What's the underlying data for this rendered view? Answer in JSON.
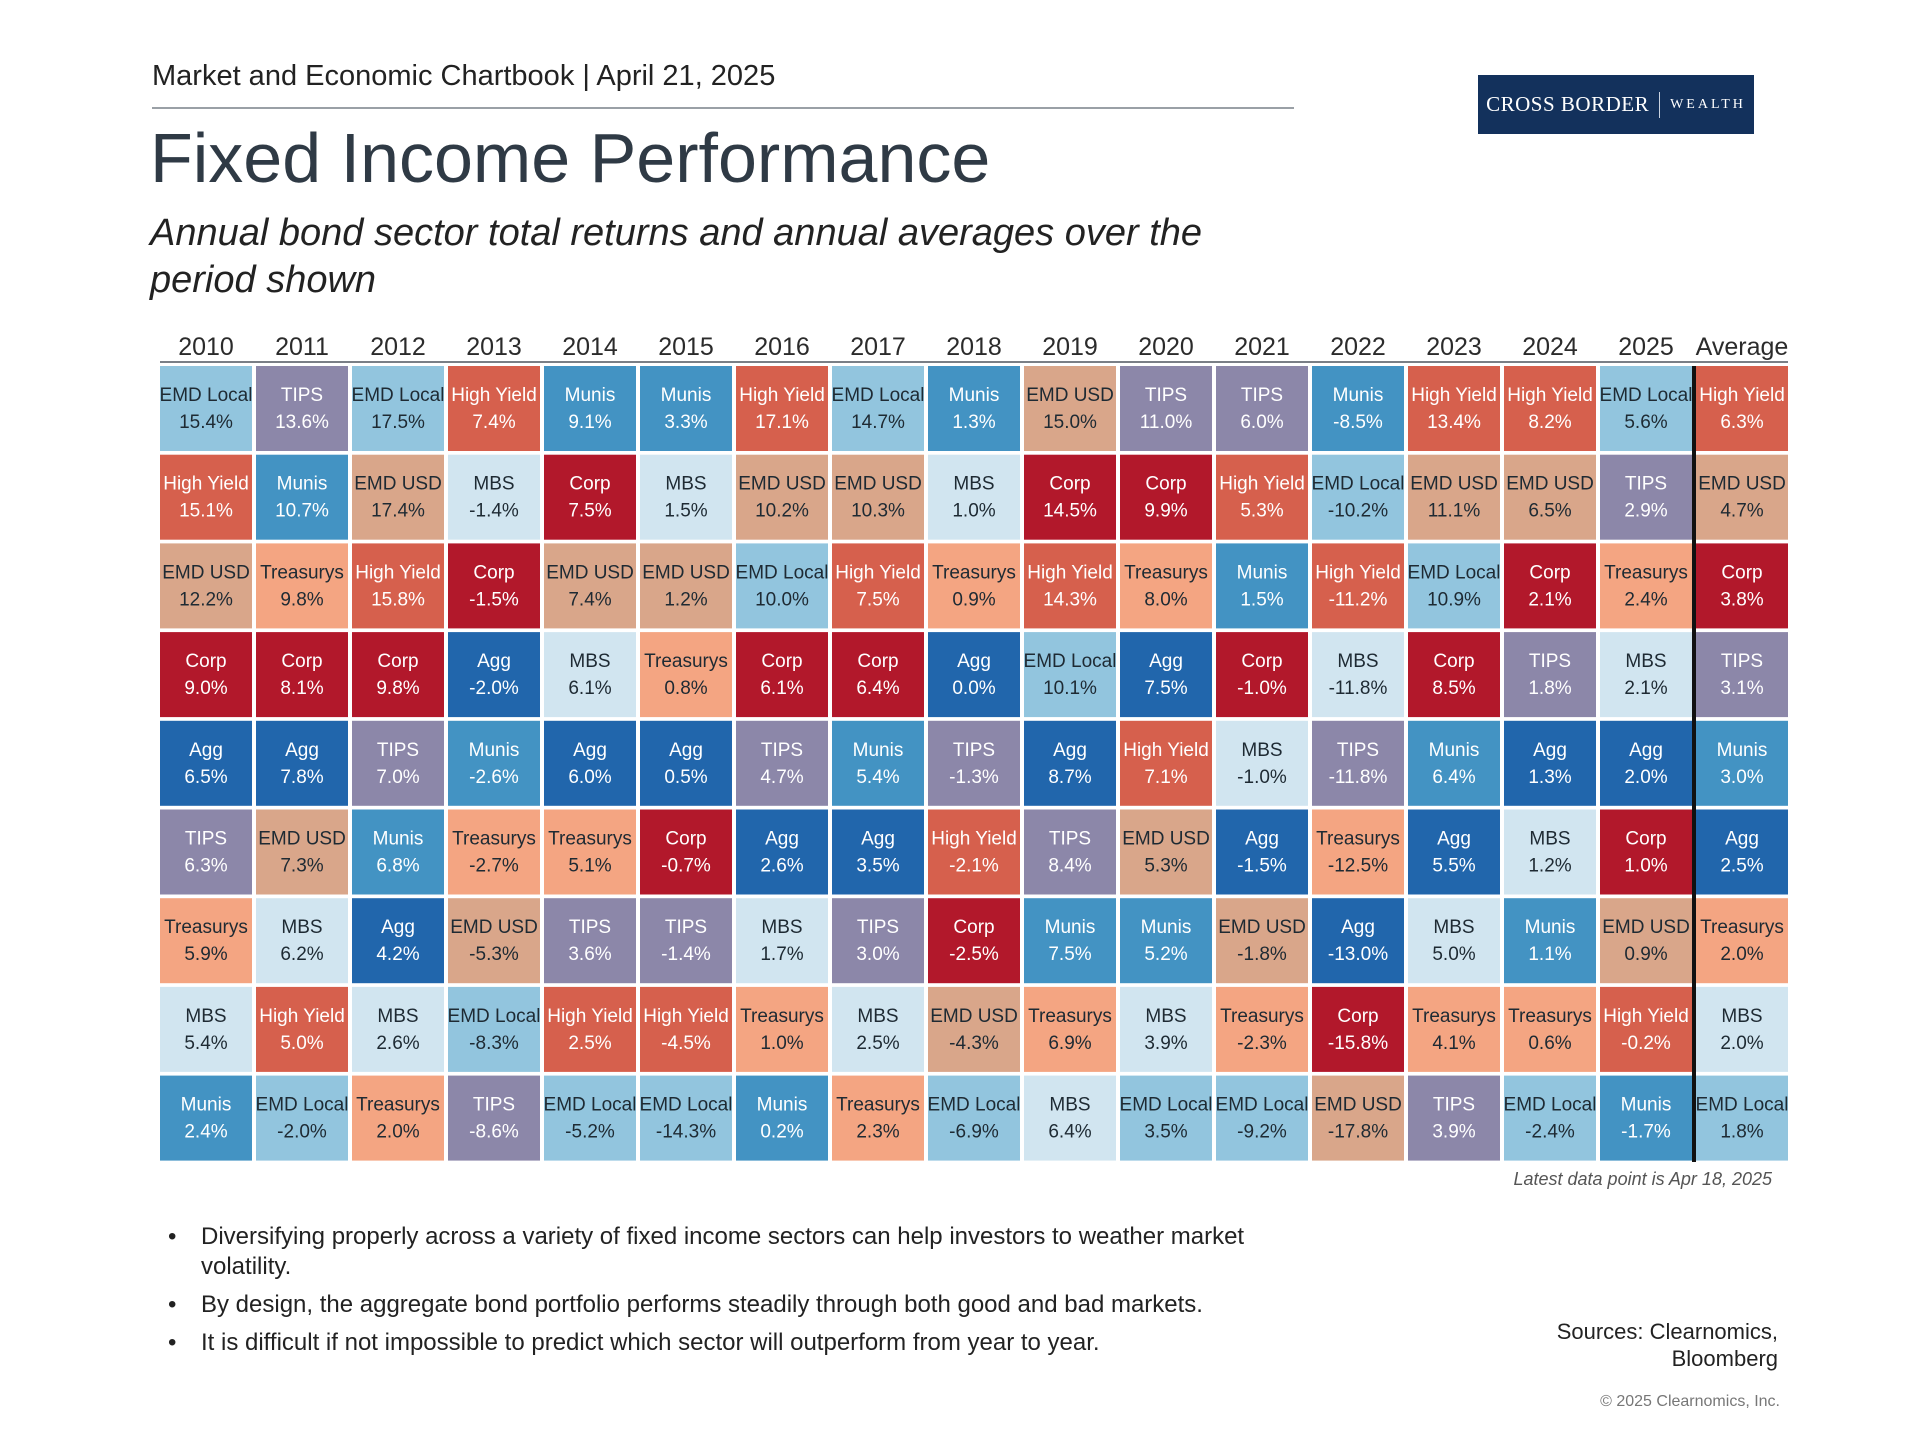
{
  "header": {
    "chartbook": "Market and Economic Chartbook | April 21, 2025",
    "logo_left": "CROSS BORDER",
    "logo_right": "WEALTH"
  },
  "title": "Fixed Income Performance",
  "subtitle": "Annual bond sector total returns and annual averages over the period shown",
  "note": "Latest data point is Apr 18, 2025",
  "bullets": [
    "Diversifying properly across a variety of fixed income sectors can help investors to weather market volatility.",
    "By design, the aggregate bond portfolio performs steadily through both good and bad markets.",
    "It is difficult if not impossible to predict which sector will outperform from year to year."
  ],
  "sources": "Sources: Clearnomics, Bloomberg",
  "copyright": "© 2025 Clearnomics, Inc.",
  "colors": {
    "EMD Local": "#92c5de",
    "TIPS": "#8c87a9",
    "High Yield": "#d6604d",
    "Munis": "#4393c3",
    "EMD USD": "#d9a68a",
    "MBS": "#d1e5f0",
    "Corp": "#b2182b",
    "Treasurys": "#f4a582",
    "Agg": "#2166ac"
  },
  "text_colors": {
    "EMD Local": "#1e2a33",
    "TIPS": "#ffffff",
    "High Yield": "#ffffff",
    "Munis": "#ffffff",
    "EMD USD": "#1e2a33",
    "MBS": "#1e2a33",
    "Corp": "#ffffff",
    "Treasurys": "#1e2a33",
    "Agg": "#ffffff"
  },
  "chart_data": {
    "type": "table",
    "title": "Fixed Income Performance",
    "columns": [
      "2010",
      "2011",
      "2012",
      "2013",
      "2014",
      "2015",
      "2016",
      "2017",
      "2018",
      "2019",
      "2020",
      "2021",
      "2022",
      "2023",
      "2024",
      "2025",
      "Average"
    ],
    "cells": [
      [
        [
          "EMD Local",
          "15.4%"
        ],
        [
          "High Yield",
          "15.1%"
        ],
        [
          "EMD USD",
          "12.2%"
        ],
        [
          "Corp",
          "9.0%"
        ],
        [
          "Agg",
          "6.5%"
        ],
        [
          "TIPS",
          "6.3%"
        ],
        [
          "Treasurys",
          "5.9%"
        ],
        [
          "MBS",
          "5.4%"
        ],
        [
          "Munis",
          "2.4%"
        ]
      ],
      [
        [
          "TIPS",
          "13.6%"
        ],
        [
          "Munis",
          "10.7%"
        ],
        [
          "Treasurys",
          "9.8%"
        ],
        [
          "Corp",
          "8.1%"
        ],
        [
          "Agg",
          "7.8%"
        ],
        [
          "EMD USD",
          "7.3%"
        ],
        [
          "MBS",
          "6.2%"
        ],
        [
          "High Yield",
          "5.0%"
        ],
        [
          "EMD Local",
          "-2.0%"
        ]
      ],
      [
        [
          "EMD Local",
          "17.5%"
        ],
        [
          "EMD USD",
          "17.4%"
        ],
        [
          "High Yield",
          "15.8%"
        ],
        [
          "Corp",
          "9.8%"
        ],
        [
          "TIPS",
          "7.0%"
        ],
        [
          "Munis",
          "6.8%"
        ],
        [
          "Agg",
          "4.2%"
        ],
        [
          "MBS",
          "2.6%"
        ],
        [
          "Treasurys",
          "2.0%"
        ]
      ],
      [
        [
          "High Yield",
          "7.4%"
        ],
        [
          "MBS",
          "-1.4%"
        ],
        [
          "Corp",
          "-1.5%"
        ],
        [
          "Agg",
          "-2.0%"
        ],
        [
          "Munis",
          "-2.6%"
        ],
        [
          "Treasurys",
          "-2.7%"
        ],
        [
          "EMD USD",
          "-5.3%"
        ],
        [
          "EMD Local",
          "-8.3%"
        ],
        [
          "TIPS",
          "-8.6%"
        ]
      ],
      [
        [
          "Munis",
          "9.1%"
        ],
        [
          "Corp",
          "7.5%"
        ],
        [
          "EMD USD",
          "7.4%"
        ],
        [
          "MBS",
          "6.1%"
        ],
        [
          "Agg",
          "6.0%"
        ],
        [
          "Treasurys",
          "5.1%"
        ],
        [
          "TIPS",
          "3.6%"
        ],
        [
          "High Yield",
          "2.5%"
        ],
        [
          "EMD Local",
          "-5.2%"
        ]
      ],
      [
        [
          "Munis",
          "3.3%"
        ],
        [
          "MBS",
          "1.5%"
        ],
        [
          "EMD USD",
          "1.2%"
        ],
        [
          "Treasurys",
          "0.8%"
        ],
        [
          "Agg",
          "0.5%"
        ],
        [
          "Corp",
          "-0.7%"
        ],
        [
          "TIPS",
          "-1.4%"
        ],
        [
          "High Yield",
          "-4.5%"
        ],
        [
          "EMD Local",
          "-14.3%"
        ]
      ],
      [
        [
          "High Yield",
          "17.1%"
        ],
        [
          "EMD USD",
          "10.2%"
        ],
        [
          "EMD Local",
          "10.0%"
        ],
        [
          "Corp",
          "6.1%"
        ],
        [
          "TIPS",
          "4.7%"
        ],
        [
          "Agg",
          "2.6%"
        ],
        [
          "MBS",
          "1.7%"
        ],
        [
          "Treasurys",
          "1.0%"
        ],
        [
          "Munis",
          "0.2%"
        ]
      ],
      [
        [
          "EMD Local",
          "14.7%"
        ],
        [
          "EMD USD",
          "10.3%"
        ],
        [
          "High Yield",
          "7.5%"
        ],
        [
          "Corp",
          "6.4%"
        ],
        [
          "Munis",
          "5.4%"
        ],
        [
          "Agg",
          "3.5%"
        ],
        [
          "TIPS",
          "3.0%"
        ],
        [
          "MBS",
          "2.5%"
        ],
        [
          "Treasurys",
          "2.3%"
        ]
      ],
      [
        [
          "Munis",
          "1.3%"
        ],
        [
          "MBS",
          "1.0%"
        ],
        [
          "Treasurys",
          "0.9%"
        ],
        [
          "Agg",
          "0.0%"
        ],
        [
          "TIPS",
          "-1.3%"
        ],
        [
          "High Yield",
          "-2.1%"
        ],
        [
          "Corp",
          "-2.5%"
        ],
        [
          "EMD USD",
          "-4.3%"
        ],
        [
          "EMD Local",
          "-6.9%"
        ]
      ],
      [
        [
          "EMD USD",
          "15.0%"
        ],
        [
          "Corp",
          "14.5%"
        ],
        [
          "High Yield",
          "14.3%"
        ],
        [
          "EMD Local",
          "10.1%"
        ],
        [
          "Agg",
          "8.7%"
        ],
        [
          "TIPS",
          "8.4%"
        ],
        [
          "Munis",
          "7.5%"
        ],
        [
          "Treasurys",
          "6.9%"
        ],
        [
          "MBS",
          "6.4%"
        ]
      ],
      [
        [
          "TIPS",
          "11.0%"
        ],
        [
          "Corp",
          "9.9%"
        ],
        [
          "Treasurys",
          "8.0%"
        ],
        [
          "Agg",
          "7.5%"
        ],
        [
          "High Yield",
          "7.1%"
        ],
        [
          "EMD USD",
          "5.3%"
        ],
        [
          "Munis",
          "5.2%"
        ],
        [
          "MBS",
          "3.9%"
        ],
        [
          "EMD Local",
          "3.5%"
        ]
      ],
      [
        [
          "TIPS",
          "6.0%"
        ],
        [
          "High Yield",
          "5.3%"
        ],
        [
          "Munis",
          "1.5%"
        ],
        [
          "Corp",
          "-1.0%"
        ],
        [
          "MBS",
          "-1.0%"
        ],
        [
          "Agg",
          "-1.5%"
        ],
        [
          "EMD USD",
          "-1.8%"
        ],
        [
          "Treasurys",
          "-2.3%"
        ],
        [
          "EMD Local",
          "-9.2%"
        ]
      ],
      [
        [
          "Munis",
          "-8.5%"
        ],
        [
          "EMD Local",
          "-10.2%"
        ],
        [
          "High Yield",
          "-11.2%"
        ],
        [
          "MBS",
          "-11.8%"
        ],
        [
          "TIPS",
          "-11.8%"
        ],
        [
          "Treasurys",
          "-12.5%"
        ],
        [
          "Agg",
          "-13.0%"
        ],
        [
          "Corp",
          "-15.8%"
        ],
        [
          "EMD USD",
          "-17.8%"
        ]
      ],
      [
        [
          "High Yield",
          "13.4%"
        ],
        [
          "EMD USD",
          "11.1%"
        ],
        [
          "EMD Local",
          "10.9%"
        ],
        [
          "Corp",
          "8.5%"
        ],
        [
          "Munis",
          "6.4%"
        ],
        [
          "Agg",
          "5.5%"
        ],
        [
          "MBS",
          "5.0%"
        ],
        [
          "Treasurys",
          "4.1%"
        ],
        [
          "TIPS",
          "3.9%"
        ]
      ],
      [
        [
          "High Yield",
          "8.2%"
        ],
        [
          "EMD USD",
          "6.5%"
        ],
        [
          "Corp",
          "2.1%"
        ],
        [
          "TIPS",
          "1.8%"
        ],
        [
          "Agg",
          "1.3%"
        ],
        [
          "MBS",
          "1.2%"
        ],
        [
          "Munis",
          "1.1%"
        ],
        [
          "Treasurys",
          "0.6%"
        ],
        [
          "EMD Local",
          "-2.4%"
        ]
      ],
      [
        [
          "EMD Local",
          "5.6%"
        ],
        [
          "TIPS",
          "2.9%"
        ],
        [
          "Treasurys",
          "2.4%"
        ],
        [
          "MBS",
          "2.1%"
        ],
        [
          "Agg",
          "2.0%"
        ],
        [
          "Corp",
          "1.0%"
        ],
        [
          "EMD USD",
          "0.9%"
        ],
        [
          "High Yield",
          "-0.2%"
        ],
        [
          "Munis",
          "-1.7%"
        ]
      ],
      [
        [
          "High Yield",
          "6.3%"
        ],
        [
          "EMD USD",
          "4.7%"
        ],
        [
          "Corp",
          "3.8%"
        ],
        [
          "TIPS",
          "3.1%"
        ],
        [
          "Munis",
          "3.0%"
        ],
        [
          "Agg",
          "2.5%"
        ],
        [
          "Treasurys",
          "2.0%"
        ],
        [
          "MBS",
          "2.0%"
        ],
        [
          "EMD Local",
          "1.8%"
        ]
      ]
    ]
  }
}
